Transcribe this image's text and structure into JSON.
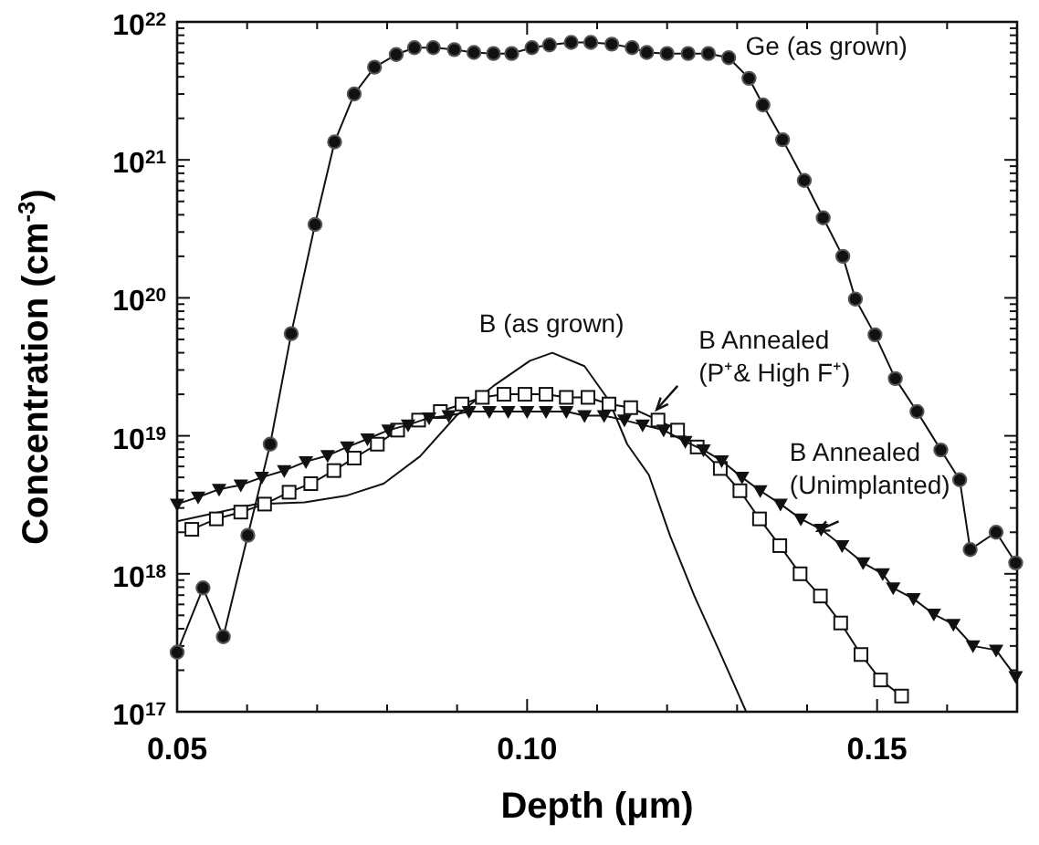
{
  "chart_data": {
    "type": "line",
    "xlabel": "Depth (μm)",
    "ylabel": "Concentration (cm$^{-3}$)",
    "log": "y",
    "grid": false,
    "xlim": [
      0.05,
      0.17
    ],
    "ylim": [
      1e+17,
      1e+22
    ],
    "xticks": [
      {
        "value": 0.05,
        "label": "0.05"
      },
      {
        "value": 0.06,
        "label": null
      },
      {
        "value": 0.07,
        "label": null
      },
      {
        "value": 0.08,
        "label": null
      },
      {
        "value": 0.09,
        "label": null
      },
      {
        "value": 0.1,
        "label": "0.10"
      },
      {
        "value": 0.11,
        "label": null
      },
      {
        "value": 0.12,
        "label": null
      },
      {
        "value": 0.13,
        "label": null
      },
      {
        "value": 0.14,
        "label": null
      },
      {
        "value": 0.15,
        "label": "0.15"
      },
      {
        "value": 0.16,
        "label": null
      },
      {
        "value": 0.17,
        "label": null
      }
    ],
    "yticks": [
      {
        "value": 1e+17,
        "label": "10$^{17}$"
      },
      {
        "value": 1e+18,
        "label": "10$^{18}$"
      },
      {
        "value": 1e+19,
        "label": "10$^{19}$"
      },
      {
        "value": 1e+20,
        "label": "10$^{20}$"
      },
      {
        "value": 1e+21,
        "label": "10$^{21}$"
      },
      {
        "value": 1e+22,
        "label": "10$^{22}$"
      }
    ],
    "series": [
      {
        "name": "Ge (as grown)",
        "color": "#111111",
        "marker": "circle",
        "line_style": "solid",
        "x": [
          0.05,
          0.0537,
          0.0566,
          0.0601,
          0.0633,
          0.0663,
          0.0697,
          0.0725,
          0.0753,
          0.0782,
          0.0813,
          0.0839,
          0.0866,
          0.0896,
          0.0924,
          0.0952,
          0.0978,
          0.1007,
          0.1032,
          0.1063,
          0.1091,
          0.1121,
          0.115,
          0.1171,
          0.12,
          0.123,
          0.1259,
          0.1288,
          0.1317,
          0.1337,
          0.1365,
          0.1396,
          0.1423,
          0.1451,
          0.1469,
          0.1497,
          0.1526,
          0.1557,
          0.1591,
          0.1618,
          0.1633,
          0.167,
          0.1698
        ],
        "values": [
          2.7e+17,
          7.9e+17,
          3.5e+17,
          1.9e+18,
          8.7e+18,
          5.5e+19,
          3.4e+20,
          1.35e+21,
          3e+21,
          4.7e+21,
          5.8e+21,
          6.5e+21,
          6.5e+21,
          6.3e+21,
          6e+21,
          5.9e+21,
          5.9e+21,
          6.5e+21,
          6.8e+21,
          7.1e+21,
          7.1e+21,
          6.9e+21,
          6.5e+21,
          6e+21,
          5.9e+21,
          5.9e+21,
          5.9e+21,
          5.5e+21,
          3.9e+21,
          2.5e+21,
          1.4e+21,
          7.1e+20,
          3.8e+20,
          2e+20,
          9.8e+19,
          5.4e+19,
          2.6e+19,
          1.5e+19,
          7.9e+18,
          4.8e+18,
          1.5e+18,
          2e+18,
          1.2e+18
        ]
      },
      {
        "name": "B (as grown)",
        "color": "#111111",
        "marker": "none",
        "line_style": "solid",
        "x": [
          0.05,
          0.0612,
          0.0682,
          0.0743,
          0.0795,
          0.0847,
          0.0899,
          0.0952,
          0.1004,
          0.1036,
          0.1082,
          0.1117,
          0.1143,
          0.1174,
          0.1204,
          0.1239,
          0.1274,
          0.1313
        ],
        "values": [
          2.4e+18,
          3.2e+18,
          3.3e+18,
          3.7e+18,
          4.5e+18,
          7.1e+18,
          1.4e+19,
          2.3e+19,
          3.5e+19,
          4e+19,
          3.2e+19,
          1.8e+19,
          8.7e+18,
          5.2e+18,
          1.9e+18,
          6.9e+17,
          2.8e+17,
          1e+17
        ]
      },
      {
        "name": "B Annealed (P⁺& High F⁺)",
        "color": "#111111",
        "marker": "square",
        "line_style": "solid",
        "x": [
          0.0521,
          0.0556,
          0.0591,
          0.0625,
          0.066,
          0.0691,
          0.0724,
          0.0753,
          0.0786,
          0.0815,
          0.0845,
          0.0876,
          0.0907,
          0.0936,
          0.0967,
          0.0997,
          0.1027,
          0.1056,
          0.1087,
          0.1117,
          0.1148,
          0.1187,
          0.1215,
          0.1243,
          0.1276,
          0.1304,
          0.1332,
          0.1361,
          0.139,
          0.1419,
          0.1448,
          0.1477,
          0.1505,
          0.1535
        ],
        "values": [
          2.1e+18,
          2.5e+18,
          2.8e+18,
          3.2e+18,
          3.9e+18,
          4.5e+18,
          5.6e+18,
          6.9e+18,
          8.7e+18,
          1.1e+19,
          1.3e+19,
          1.5e+19,
          1.7e+19,
          1.9e+19,
          2e+19,
          2e+19,
          2e+19,
          1.9e+19,
          1.9e+19,
          1.7e+19,
          1.6e+19,
          1.3e+19,
          1.1e+19,
          8.3e+18,
          5.8e+18,
          4e+18,
          2.5e+18,
          1.6e+18,
          1e+18,
          6.9e+17,
          4.4e+17,
          2.6e+17,
          1.7e+17,
          1.3e+17
        ]
      },
      {
        "name": "B Annealed (Unimplanted)",
        "color": "#111111",
        "marker": "triangle",
        "line_style": "solid",
        "x": [
          0.05,
          0.053,
          0.056,
          0.0591,
          0.0621,
          0.0653,
          0.0684,
          0.0715,
          0.0743,
          0.0772,
          0.0802,
          0.083,
          0.086,
          0.0888,
          0.0917,
          0.0946,
          0.0973,
          0.1,
          0.1027,
          0.1056,
          0.1082,
          0.111,
          0.1139,
          0.1165,
          0.1195,
          0.1226,
          0.1252,
          0.1278,
          0.1307,
          0.1333,
          0.1362,
          0.1391,
          0.142,
          0.145,
          0.148,
          0.1508,
          0.1523,
          0.1552,
          0.1581,
          0.1609,
          0.1637,
          0.167,
          0.1698
        ],
        "values": [
          3.2e+18,
          3.6e+18,
          4.1e+18,
          4.4e+18,
          5e+18,
          5.6e+18,
          6.5e+18,
          7.2e+18,
          8.3e+18,
          9.5e+18,
          1.1e+19,
          1.2e+19,
          1.35e+19,
          1.4e+19,
          1.5e+19,
          1.5e+19,
          1.5e+19,
          1.5e+19,
          1.5e+19,
          1.5e+19,
          1.4e+19,
          1.4e+19,
          1.3e+19,
          1.2e+19,
          1.1e+19,
          9.1e+18,
          7.9e+18,
          6.6e+18,
          5e+18,
          4e+18,
          3.2e+18,
          2.5e+18,
          2.1e+18,
          1.6e+18,
          1.2e+18,
          1e+18,
          7.9e+17,
          6.6e+17,
          5.1e+17,
          4.3e+17,
          3e+17,
          2.8e+17,
          1.8e+17
        ]
      }
    ]
  }
}
